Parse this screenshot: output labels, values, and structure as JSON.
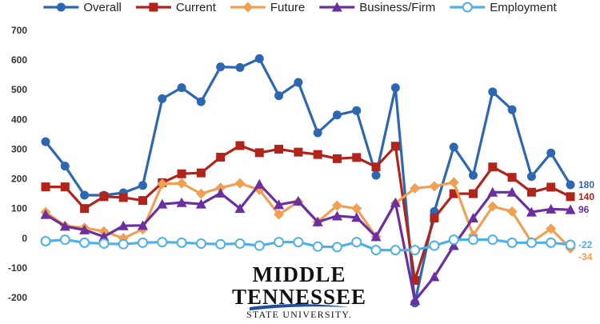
{
  "chart_data": {
    "type": "line",
    "ylim": [
      -200,
      700
    ],
    "yticks": [
      -200,
      -100,
      0,
      100,
      200,
      300,
      400,
      500,
      600,
      700
    ],
    "grid": false,
    "legend_position": "top",
    "series": [
      {
        "name": "Overall",
        "color": "#2E67B1",
        "marker": "circle",
        "values": [
          325,
          243,
          145,
          145,
          153,
          178,
          470,
          507,
          460,
          577,
          575,
          605,
          480,
          525,
          355,
          415,
          430,
          212,
          507,
          -218,
          90,
          307,
          212,
          493,
          433,
          208,
          287,
          180
        ],
        "end_label": "180"
      },
      {
        "name": "Current",
        "color": "#B2231B",
        "marker": "square",
        "values": [
          173,
          173,
          100,
          140,
          137,
          127,
          187,
          217,
          220,
          273,
          312,
          288,
          300,
          290,
          282,
          268,
          272,
          240,
          310,
          -142,
          68,
          150,
          150,
          240,
          205,
          155,
          172,
          140
        ],
        "end_label": "140"
      },
      {
        "name": "Future",
        "color": "#EFA053",
        "marker": "diamond",
        "values": [
          88,
          42,
          35,
          23,
          0,
          30,
          183,
          185,
          150,
          170,
          185,
          163,
          80,
          123,
          55,
          110,
          100,
          5,
          118,
          168,
          175,
          188,
          10,
          107,
          90,
          -13,
          32,
          -34
        ],
        "end_label": "-34"
      },
      {
        "name": "Business/Firm",
        "color": "#6B2FA0",
        "marker": "triangle",
        "values": [
          80,
          40,
          28,
          5,
          42,
          43,
          115,
          120,
          115,
          152,
          100,
          182,
          113,
          125,
          55,
          75,
          70,
          5,
          120,
          -210,
          -130,
          -25,
          68,
          155,
          155,
          88,
          98,
          96
        ],
        "end_label": "96"
      },
      {
        "name": "Employment",
        "color": "#4FB0E6",
        "marker": "hollow-circle",
        "values": [
          -10,
          -5,
          -15,
          -18,
          -20,
          -15,
          -13,
          -15,
          -18,
          -20,
          -18,
          -25,
          -13,
          -13,
          -28,
          -30,
          -13,
          -40,
          -40,
          -40,
          -25,
          -5,
          -5,
          -5,
          -15,
          -15,
          -15,
          -22
        ],
        "end_label": "-22"
      }
    ]
  },
  "logo": {
    "line1": "MIDDLE",
    "line2": "TENNESSEE",
    "line3": "STATE UNIVERSITY."
  }
}
